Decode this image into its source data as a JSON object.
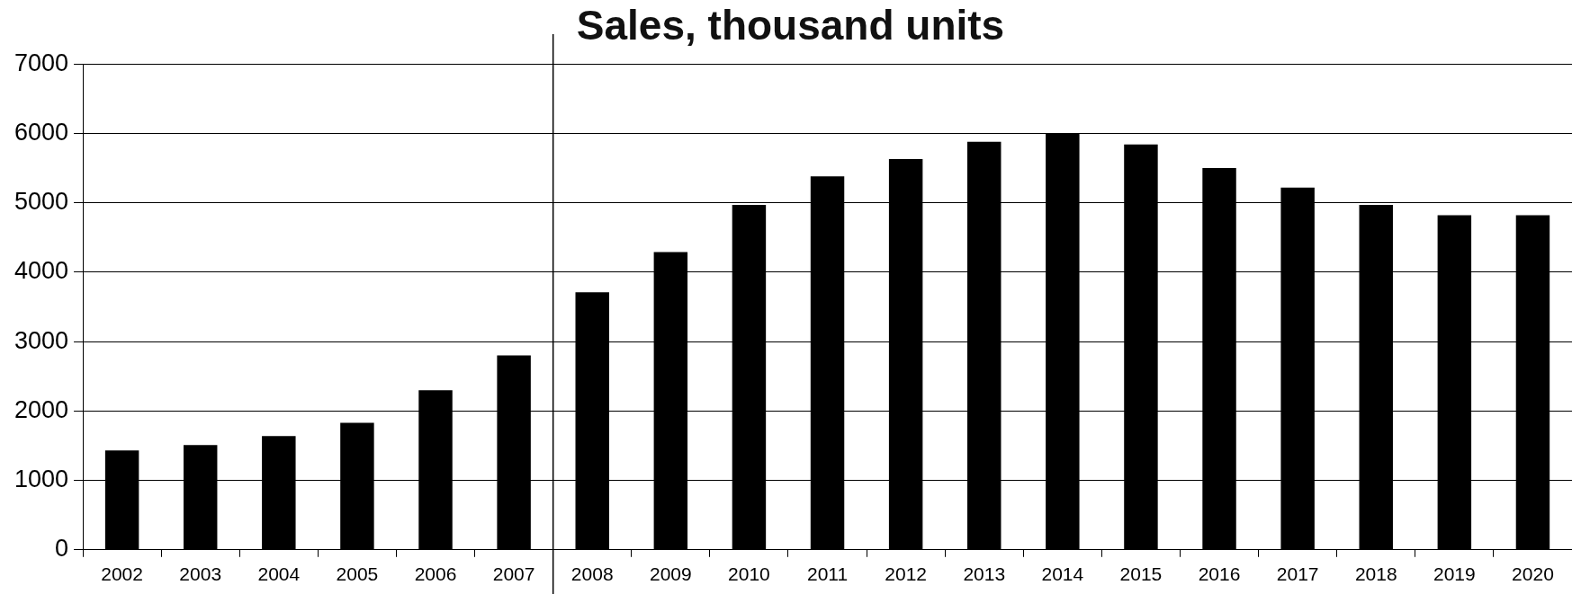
{
  "chart_data": {
    "type": "bar",
    "title": "Sales, thousand units",
    "categories": [
      "2002",
      "2003",
      "2004",
      "2005",
      "2006",
      "2007",
      "2008",
      "2009",
      "2010",
      "2011",
      "2012",
      "2013",
      "2014",
      "2015",
      "2016",
      "2017",
      "2018",
      "2019",
      "2020"
    ],
    "values": [
      1430,
      1510,
      1640,
      1830,
      2300,
      2800,
      3710,
      4290,
      4970,
      5380,
      5630,
      5880,
      6000,
      5840,
      5500,
      5220,
      4970,
      4820,
      4820
    ],
    "color": "#000000",
    "ylim": [
      0,
      7000
    ],
    "yticks": [
      0,
      1000,
      2000,
      3000,
      4000,
      5000,
      6000,
      7000
    ],
    "grid": "y",
    "legend": false,
    "ref_lines": [
      {
        "axis": "x",
        "value": "2008",
        "color": "#000000"
      }
    ]
  }
}
